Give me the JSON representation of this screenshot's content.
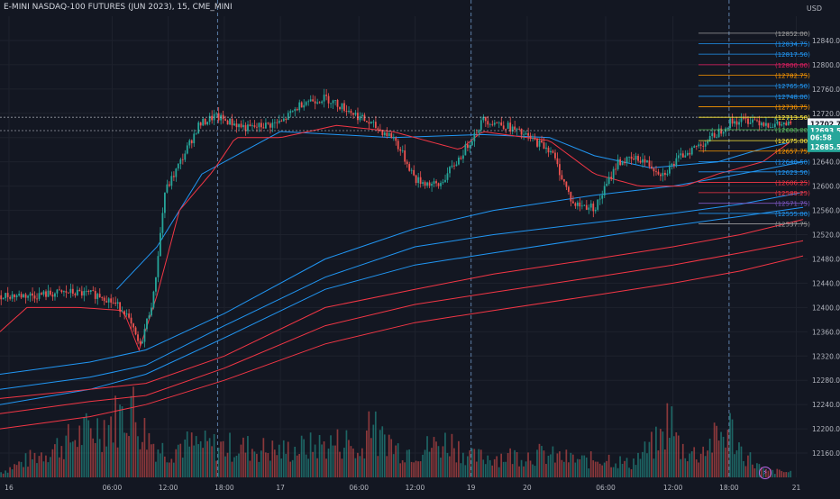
{
  "title": "E-MINI NASDAQ-100 FUTURES (JUN 2023), 15, CME_MINI",
  "currency": "USD",
  "colors": {
    "background": "#131722",
    "up": "#26a69a",
    "down": "#ef5350",
    "ma_blue": "#2196f3",
    "ma_red": "#f23645",
    "grid": "#1e222d",
    "text": "#b2b5be"
  },
  "icons": [
    "lightning-icon"
  ],
  "chart_data": {
    "type": "candlestick",
    "ylim": [
      12120,
      12880
    ],
    "y_ticks": [
      12160,
      12200,
      12240,
      12280,
      12320,
      12360,
      12400,
      12440,
      12480,
      12520,
      12560,
      12600,
      12640,
      12680,
      12720,
      12760,
      12800,
      12840
    ],
    "x_ticks": [
      {
        "label": "16",
        "bar": 4
      },
      {
        "label": "06:00",
        "bar": 50
      },
      {
        "label": "12:00",
        "bar": 75
      },
      {
        "label": "18:00",
        "bar": 100
      },
      {
        "label": "17",
        "bar": 125
      },
      {
        "label": "06:00",
        "bar": 160
      },
      {
        "label": "12:00",
        "bar": 185
      },
      {
        "label": "19",
        "bar": 210
      },
      {
        "label": "20",
        "bar": 235
      },
      {
        "label": "06:00",
        "bar": 270
      },
      {
        "label": "12:00",
        "bar": 300
      },
      {
        "label": "18:00",
        "bar": 325
      },
      {
        "label": "21",
        "bar": 355
      }
    ],
    "session_breaks": [
      97,
      210,
      325
    ],
    "price_path": [
      [
        0,
        12420
      ],
      [
        15,
        12420
      ],
      [
        30,
        12425
      ],
      [
        45,
        12420
      ],
      [
        55,
        12395
      ],
      [
        62,
        12335
      ],
      [
        68,
        12420
      ],
      [
        73,
        12590
      ],
      [
        80,
        12640
      ],
      [
        88,
        12700
      ],
      [
        95,
        12715
      ],
      [
        110,
        12695
      ],
      [
        125,
        12705
      ],
      [
        135,
        12740
      ],
      [
        145,
        12745
      ],
      [
        155,
        12725
      ],
      [
        170,
        12690
      ],
      [
        175,
        12680
      ],
      [
        185,
        12610
      ],
      [
        195,
        12600
      ],
      [
        205,
        12650
      ],
      [
        215,
        12710
      ],
      [
        225,
        12700
      ],
      [
        235,
        12680
      ],
      [
        245,
        12660
      ],
      [
        255,
        12570
      ],
      [
        265,
        12565
      ],
      [
        275,
        12640
      ],
      [
        285,
        12645
      ],
      [
        295,
        12620
      ],
      [
        305,
        12655
      ],
      [
        315,
        12675
      ],
      [
        325,
        12705
      ],
      [
        335,
        12710
      ],
      [
        345,
        12700
      ],
      [
        350,
        12702
      ],
      [
        352,
        12700
      ]
    ],
    "last_bar": 352,
    "trailing_line": [
      [
        0,
        12360
      ],
      [
        12,
        12400
      ],
      [
        35,
        12400
      ],
      [
        55,
        12395
      ],
      [
        62,
        12330
      ],
      [
        70,
        12420
      ],
      [
        80,
        12560
      ],
      [
        95,
        12625
      ],
      [
        105,
        12680
      ],
      [
        125,
        12680
      ],
      [
        150,
        12700
      ],
      [
        175,
        12690
      ],
      [
        205,
        12660
      ],
      [
        215,
        12690
      ],
      [
        245,
        12675
      ],
      [
        265,
        12620
      ],
      [
        285,
        12600
      ],
      [
        305,
        12600
      ],
      [
        320,
        12620
      ],
      [
        340,
        12640
      ],
      [
        352,
        12672
      ]
    ],
    "moving_averages": [
      {
        "color": "#2196f3",
        "points": [
          [
            52,
            12430
          ],
          [
            70,
            12500
          ],
          [
            90,
            12620
          ],
          [
            125,
            12690
          ],
          [
            175,
            12680
          ],
          [
            215,
            12685
          ],
          [
            245,
            12680
          ],
          [
            265,
            12650
          ],
          [
            290,
            12630
          ],
          [
            320,
            12640
          ],
          [
            340,
            12662
          ],
          [
            352,
            12672
          ]
        ]
      },
      {
        "color": "#2196f3",
        "points": [
          [
            0,
            12290
          ],
          [
            40,
            12310
          ],
          [
            65,
            12330
          ],
          [
            100,
            12390
          ],
          [
            145,
            12480
          ],
          [
            185,
            12530
          ],
          [
            220,
            12560
          ],
          [
            265,
            12585
          ],
          [
            300,
            12600
          ],
          [
            330,
            12620
          ],
          [
            358,
            12640
          ]
        ]
      },
      {
        "color": "#2196f3",
        "points": [
          [
            0,
            12265
          ],
          [
            40,
            12285
          ],
          [
            65,
            12305
          ],
          [
            100,
            12370
          ],
          [
            145,
            12450
          ],
          [
            185,
            12500
          ],
          [
            220,
            12520
          ],
          [
            265,
            12540
          ],
          [
            300,
            12555
          ],
          [
            330,
            12570
          ],
          [
            358,
            12590
          ]
        ]
      },
      {
        "color": "#2196f3",
        "points": [
          [
            0,
            12240
          ],
          [
            40,
            12265
          ],
          [
            65,
            12290
          ],
          [
            100,
            12350
          ],
          [
            145,
            12430
          ],
          [
            185,
            12470
          ],
          [
            220,
            12490
          ],
          [
            265,
            12515
          ],
          [
            300,
            12535
          ],
          [
            330,
            12550
          ],
          [
            358,
            12565
          ]
        ]
      },
      {
        "color": "#f23645",
        "points": [
          [
            0,
            12250
          ],
          [
            40,
            12265
          ],
          [
            65,
            12275
          ],
          [
            100,
            12320
          ],
          [
            145,
            12400
          ],
          [
            185,
            12430
          ],
          [
            220,
            12455
          ],
          [
            265,
            12480
          ],
          [
            300,
            12500
          ],
          [
            330,
            12520
          ],
          [
            358,
            12545
          ]
        ]
      },
      {
        "color": "#f23645",
        "points": [
          [
            0,
            12225
          ],
          [
            40,
            12245
          ],
          [
            65,
            12255
          ],
          [
            100,
            12300
          ],
          [
            145,
            12370
          ],
          [
            185,
            12405
          ],
          [
            220,
            12425
          ],
          [
            265,
            12450
          ],
          [
            300,
            12470
          ],
          [
            330,
            12490
          ],
          [
            358,
            12510
          ]
        ]
      },
      {
        "color": "#f23645",
        "points": [
          [
            0,
            12200
          ],
          [
            40,
            12220
          ],
          [
            65,
            12240
          ],
          [
            100,
            12280
          ],
          [
            145,
            12340
          ],
          [
            185,
            12375
          ],
          [
            220,
            12395
          ],
          [
            265,
            12420
          ],
          [
            300,
            12440
          ],
          [
            330,
            12460
          ],
          [
            358,
            12485
          ]
        ]
      }
    ],
    "horizontal_levels": [
      {
        "label": "(12852.00)",
        "value": 12852.0,
        "color": "#9e9e9e"
      },
      {
        "label": "(12834.75)",
        "value": 12834.75,
        "color": "#2196f3"
      },
      {
        "label": "(12817.50)",
        "value": 12817.5,
        "color": "#2196f3"
      },
      {
        "label": "(12800.00)",
        "value": 12800.0,
        "color": "#e91e63"
      },
      {
        "label": "(12782.75)",
        "value": 12782.75,
        "color": "#ff9800"
      },
      {
        "label": "(12765.50)",
        "value": 12765.5,
        "color": "#2196f3"
      },
      {
        "label": "(12748.00)",
        "value": 12748.0,
        "color": "#2196f3"
      },
      {
        "label": "(12730.75)",
        "value": 12730.75,
        "color": "#ff9800"
      },
      {
        "label": "(12713.50)",
        "value": 12713.5,
        "color": "#ffeb3b"
      },
      {
        "label": "(12693.00)",
        "value": 12693.0,
        "color": "#4caf50"
      },
      {
        "label": "(12675.00)",
        "value": 12675.0,
        "color": "#ffeb3b"
      },
      {
        "label": "(12657.75)",
        "value": 12657.75,
        "color": "#ff9800"
      },
      {
        "label": "(12640.50)",
        "value": 12640.5,
        "color": "#2196f3"
      },
      {
        "label": "(12623.50)",
        "value": 12623.5,
        "color": "#2196f3"
      },
      {
        "label": "(12606.25)",
        "value": 12606.25,
        "color": "#f23645"
      },
      {
        "label": "(12589.25)",
        "value": 12589.25,
        "color": "#f23645"
      },
      {
        "label": "(12571.75)",
        "value": 12571.75,
        "color": "#7e57c2"
      },
      {
        "label": "(12555.00)",
        "value": 12555.0,
        "color": "#2196f3"
      },
      {
        "label": "(12537.75)",
        "value": 12537.75,
        "color": "#9e9e9e"
      }
    ],
    "price_badges": [
      {
        "label": "12702.75",
        "value": 12702.75,
        "bg": "#f0f3fa",
        "fg": "#131722"
      },
      {
        "label": "12693.50",
        "value": 12691.5,
        "bg": "#26a69a",
        "fg": "#ffffff"
      },
      {
        "label": "06:58",
        "value": 12680.5,
        "bg": "#26a69a",
        "fg": "#ffffff"
      },
      {
        "label": "12685.50",
        "value": 12665.0,
        "bg": "#26a69a",
        "fg": "#ffffff"
      }
    ],
    "dotted_lines": [
      12713.5,
      12691.5
    ],
    "volume_peaks": [
      [
        55,
        95
      ],
      [
        58,
        120
      ],
      [
        60,
        85
      ],
      [
        63,
        75
      ],
      [
        66,
        60
      ],
      [
        70,
        45
      ],
      [
        75,
        40
      ],
      [
        80,
        50
      ],
      [
        110,
        45
      ],
      [
        125,
        40
      ],
      [
        155,
        55
      ],
      [
        160,
        30
      ],
      [
        165,
        105
      ],
      [
        168,
        50
      ],
      [
        172,
        65
      ],
      [
        175,
        45
      ],
      [
        185,
        40
      ],
      [
        200,
        55
      ],
      [
        210,
        30
      ],
      [
        240,
        35
      ],
      [
        260,
        25
      ],
      [
        270,
        30
      ],
      [
        280,
        20
      ],
      [
        295,
        60
      ],
      [
        298,
        100
      ],
      [
        300,
        65
      ],
      [
        303,
        45
      ],
      [
        310,
        35
      ],
      [
        325,
        75
      ],
      [
        330,
        40
      ],
      [
        340,
        10
      ],
      [
        352,
        8
      ]
    ]
  }
}
